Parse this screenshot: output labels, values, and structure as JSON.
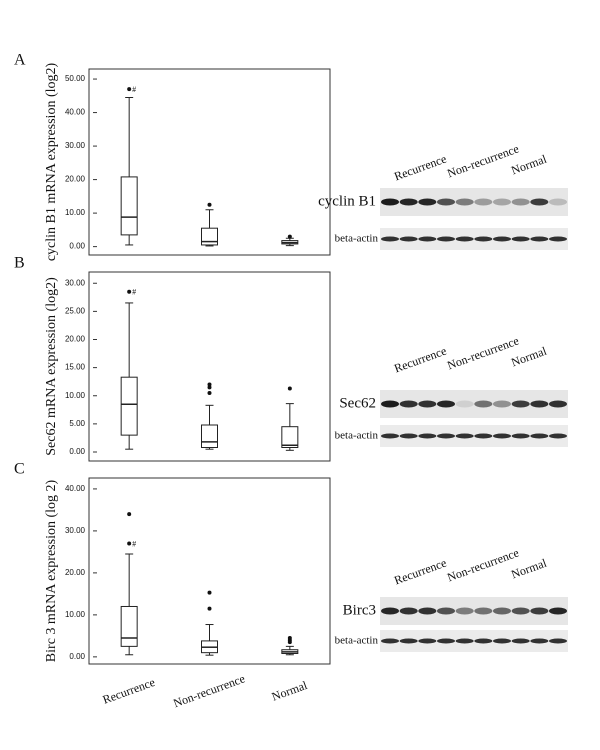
{
  "chart_data": [
    {
      "type": "box",
      "y_label": "cyclin B1 mRNA expression (log2)",
      "categories": [
        null,
        null,
        null
      ],
      "ylim": [
        -2.5,
        53
      ],
      "yticks": [
        {
          "value": 0,
          "label": "0.00"
        },
        {
          "value": 10,
          "label": "10.00"
        },
        {
          "value": 20,
          "label": "20.00"
        },
        {
          "value": 30,
          "label": "30.00"
        },
        {
          "value": 40,
          "label": "40.00"
        },
        {
          "value": 50,
          "label": "50.00"
        }
      ],
      "boxes": [
        {
          "min": 0.5,
          "q1": 3.5,
          "median": 8.8,
          "q3": 20.8,
          "max": 44.5,
          "outliers": [
            47
          ]
        },
        {
          "min": 0.2,
          "q1": 0.5,
          "median": 1.5,
          "q3": 5.5,
          "max": 11,
          "outliers": [
            12.5
          ]
        },
        {
          "min": 0.3,
          "q1": 0.8,
          "median": 1.2,
          "q3": 1.8,
          "max": 2.5,
          "outliers": [
            3
          ]
        }
      ],
      "annotation": "#"
    },
    {
      "type": "box",
      "y_label": "Sec62 mRNA expression (log2)",
      "categories": [
        null,
        null,
        null
      ],
      "ylim": [
        -1.6,
        32
      ],
      "yticks": [
        {
          "value": 0,
          "label": "0.00"
        },
        {
          "value": 5,
          "label": "5.00"
        },
        {
          "value": 10,
          "label": "10.00"
        },
        {
          "value": 15,
          "label": "15.00"
        },
        {
          "value": 20,
          "label": "20.00"
        },
        {
          "value": 25,
          "label": "25.00"
        },
        {
          "value": 30,
          "label": "30.00"
        }
      ],
      "boxes": [
        {
          "min": 0.5,
          "q1": 3,
          "median": 8.5,
          "q3": 13.3,
          "max": 26.5,
          "outliers": [
            28.5
          ]
        },
        {
          "min": 0.5,
          "q1": 0.8,
          "median": 1.8,
          "q3": 4.8,
          "max": 8.3,
          "outliers": [
            10.5,
            11.5,
            12
          ]
        },
        {
          "min": 0.3,
          "q1": 0.8,
          "median": 1.2,
          "q3": 4.5,
          "max": 8.6,
          "outliers": [
            11.3
          ]
        }
      ],
      "annotation": "#"
    },
    {
      "type": "box",
      "y_label": "Birc 3 mRNA expression (log 2)",
      "categories": [
        "Recurrence",
        "Non-recurrence",
        "Normal"
      ],
      "ylim": [
        -1.7,
        42.6
      ],
      "yticks": [
        {
          "value": 0,
          "label": "0.00"
        },
        {
          "value": 10,
          "label": "10.00"
        },
        {
          "value": 20,
          "label": "20.00"
        },
        {
          "value": 30,
          "label": "30.00"
        },
        {
          "value": 40,
          "label": "40.00"
        }
      ],
      "boxes": [
        {
          "min": 0.5,
          "q1": 2.5,
          "median": 4.5,
          "q3": 12,
          "max": 24.5,
          "outliers": [
            27,
            34
          ]
        },
        {
          "min": 0.4,
          "q1": 1,
          "median": 2.3,
          "q3": 3.8,
          "max": 7.7,
          "outliers": [
            11.5,
            15.3
          ]
        },
        {
          "min": 0.5,
          "q1": 0.8,
          "median": 1.2,
          "q3": 1.7,
          "max": 2.5,
          "outliers": [
            3.5,
            4,
            4.5
          ]
        }
      ],
      "annotation": "#"
    }
  ],
  "panel_labels": [
    "A",
    "B",
    "C"
  ],
  "blots": [
    {
      "groups": [
        "Recurrence",
        "Non-recurrence",
        "Normal"
      ],
      "protein": "cyclin B1",
      "control": "beta-actin"
    },
    {
      "groups": [
        "Recurrence",
        "Non-recurrence",
        "Normal"
      ],
      "protein": "Sec62",
      "control": "beta-actin"
    },
    {
      "groups": [
        "Recurrence",
        "Non-recurrence",
        "Normal"
      ],
      "protein": "Birc3",
      "control": "beta-actin"
    }
  ]
}
